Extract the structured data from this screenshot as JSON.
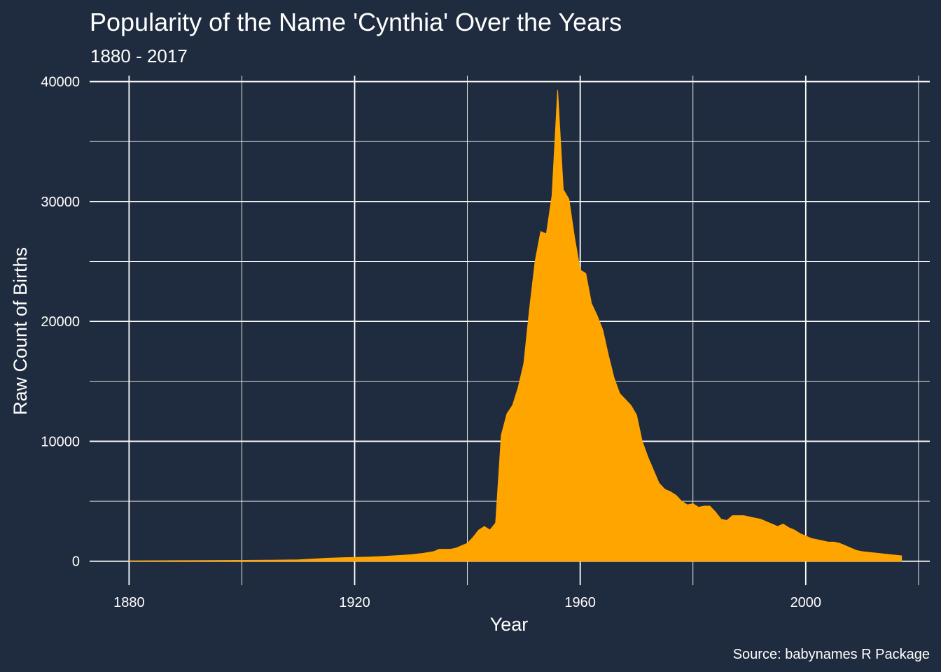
{
  "chart_data": {
    "type": "area",
    "title": "Popularity of the Name 'Cynthia' Over the Years",
    "subtitle": "1880 - 2017",
    "xlabel": "Year",
    "ylabel": "Raw Count of Births",
    "caption": "Source: babynames R Package",
    "xlim": [
      1873,
      2022
    ],
    "ylim": [
      -2000,
      40500
    ],
    "x_ticks": [
      1880,
      1920,
      1960,
      2000
    ],
    "x_minor_ticks": [
      1900,
      1940,
      1980,
      2020
    ],
    "y_ticks": [
      0,
      10000,
      20000,
      30000,
      40000
    ],
    "y_minor_ticks": [
      5000,
      15000,
      25000,
      35000
    ],
    "fill_color": "#ffa500",
    "background_color": "#1f2b3e",
    "grid_color": "#ffffff",
    "grid": true,
    "legend": "none",
    "x": [
      1880,
      1890,
      1900,
      1905,
      1910,
      1912,
      1915,
      1918,
      1920,
      1923,
      1925,
      1928,
      1930,
      1932,
      1934,
      1935,
      1937,
      1938,
      1939,
      1940,
      1941,
      1942,
      1943,
      1944,
      1945,
      1946,
      1947,
      1948,
      1949,
      1950,
      1951,
      1952,
      1953,
      1954,
      1955,
      1956,
      1957,
      1958,
      1959,
      1960,
      1961,
      1962,
      1963,
      1964,
      1965,
      1966,
      1967,
      1968,
      1969,
      1970,
      1971,
      1972,
      1973,
      1974,
      1975,
      1976,
      1977,
      1978,
      1979,
      1980,
      1981,
      1982,
      1983,
      1984,
      1985,
      1986,
      1987,
      1988,
      1989,
      1990,
      1991,
      1992,
      1993,
      1994,
      1995,
      1996,
      1997,
      1998,
      1999,
      2000,
      2001,
      2002,
      2003,
      2004,
      2005,
      2006,
      2007,
      2008,
      2009,
      2010,
      2011,
      2012,
      2013,
      2014,
      2015,
      2016,
      2017
    ],
    "values": [
      30,
      50,
      70,
      90,
      120,
      170,
      250,
      300,
      320,
      360,
      400,
      480,
      550,
      650,
      800,
      1000,
      1000,
      1100,
      1300,
      1500,
      2000,
      2600,
      2900,
      2600,
      3200,
      10500,
      12300,
      13000,
      14500,
      16500,
      21000,
      25000,
      27500,
      27300,
      30500,
      39300,
      31000,
      30200,
      27000,
      24300,
      24000,
      21500,
      20500,
      19300,
      17200,
      15300,
      14000,
      13500,
      13000,
      12200,
      10000,
      8700,
      7600,
      6500,
      6000,
      5800,
      5500,
      5000,
      4700,
      4800,
      4500,
      4600,
      4600,
      4100,
      3500,
      3400,
      3800,
      3800,
      3800,
      3700,
      3600,
      3500,
      3300,
      3100,
      2900,
      3100,
      2800,
      2600,
      2300,
      2100,
      1900,
      1800,
      1700,
      1600,
      1600,
      1500,
      1300,
      1100,
      900,
      800,
      750,
      700,
      650,
      600,
      550,
      500,
      450
    ]
  }
}
